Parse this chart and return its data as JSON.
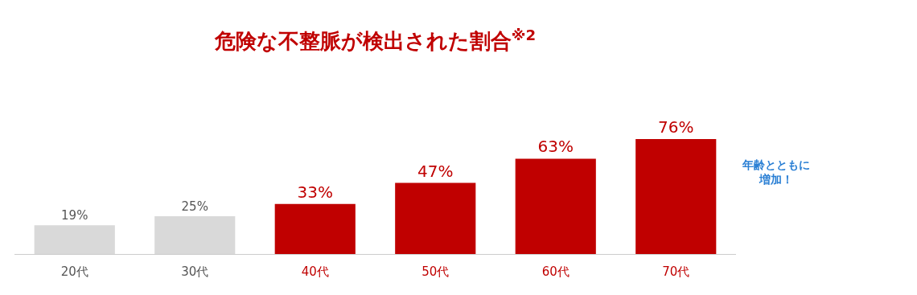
{
  "chart_data": {
    "type": "bar",
    "title": "危険な不整脈が検出された割合$^{※2}$",
    "categories": [
      "20代",
      "30代",
      "40代",
      "50代",
      "60代",
      "70代"
    ],
    "values": [
      19,
      25,
      33,
      47,
      63,
      76
    ],
    "value_labels": [
      "19%",
      "25%",
      "33%",
      "47%",
      "63%",
      "76%"
    ],
    "colors": [
      "#d9d9d9",
      "#d9d9d9",
      "#c00000",
      "#c00000",
      "#c00000",
      "#c00000"
    ],
    "annotations": [
      "年齢とともに増加！"
    ],
    "legend": false
  }
}
